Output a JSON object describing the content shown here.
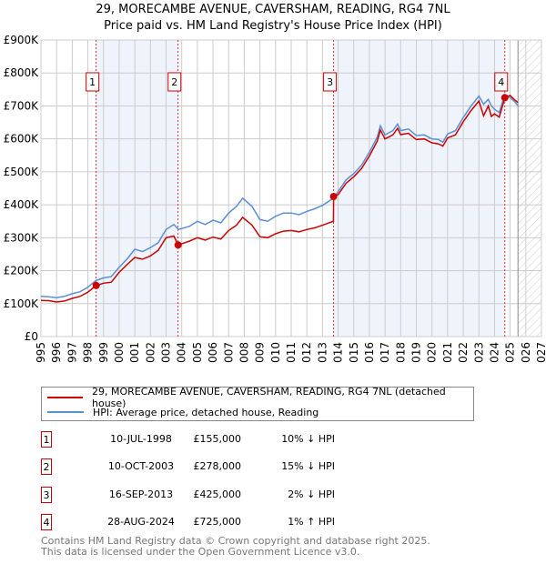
{
  "title": [
    "29, MORECAMBE AVENUE, CAVERSHAM, READING, RG4 7NL",
    "Price paid vs. HM Land Registry's House Price Index (HPI)"
  ],
  "chart_data": {
    "type": "line",
    "title": "29, MORECAMBE AVENUE, CAVERSHAM, READING, RG4 7NL - Price paid vs. HM Land Registry's House Price Index (HPI)",
    "xlim": [
      1995,
      2027
    ],
    "ylim": [
      0,
      900000
    ],
    "xticks": [
      1995,
      1996,
      1997,
      1998,
      1999,
      2000,
      2001,
      2002,
      2003,
      2004,
      2005,
      2006,
      2007,
      2008,
      2009,
      2010,
      2011,
      2012,
      2013,
      2014,
      2015,
      2016,
      2017,
      2018,
      2019,
      2020,
      2021,
      2022,
      2023,
      2024,
      2025,
      2026,
      2027
    ],
    "yticks": [
      {
        "v": 0,
        "label": "£0"
      },
      {
        "v": 100000,
        "label": "£100K"
      },
      {
        "v": 200000,
        "label": "£200K"
      },
      {
        "v": 300000,
        "label": "£300K"
      },
      {
        "v": 400000,
        "label": "£400K"
      },
      {
        "v": 500000,
        "label": "£500K"
      },
      {
        "v": 600000,
        "label": "£600K"
      },
      {
        "v": 700000,
        "label": "£700K"
      },
      {
        "v": 800000,
        "label": "£800K"
      },
      {
        "v": 900000,
        "label": "£900K"
      }
    ],
    "grid": true,
    "colors": {
      "property": "#cc0000",
      "hpi": "#5b8fd4",
      "shade": "#eef3fc"
    },
    "forecast_start": 2025.5,
    "series": [
      {
        "name": "hpi",
        "x": [
          1995,
          1995.5,
          1996,
          1996.5,
          1997,
          1997.5,
          1998,
          1998.5,
          1999,
          1999.5,
          2000,
          2000.5,
          2001,
          2001.5,
          2002,
          2002.5,
          2003,
          2003.5,
          2003.8,
          2004,
          2004.5,
          2005,
          2005.5,
          2006,
          2006.5,
          2007,
          2007.5,
          2007.9,
          2008.5,
          2009,
          2009.5,
          2010,
          2010.5,
          2011,
          2011.5,
          2012,
          2012.5,
          2013,
          2013.7,
          2014,
          2014.5,
          2015,
          2015.5,
          2016,
          2016.5,
          2016.7,
          2017,
          2017.5,
          2017.8,
          2018,
          2018.5,
          2019,
          2019.5,
          2020,
          2020.4,
          2020.7,
          2021,
          2021.5,
          2022,
          2022.5,
          2023,
          2023.3,
          2023.6,
          2023.8,
          2024,
          2024.3,
          2024.65,
          2025,
          2025.3,
          2025.5
        ],
        "y": [
          122000,
          121000,
          118000,
          122000,
          130000,
          136000,
          150000,
          170000,
          178000,
          182000,
          210000,
          235000,
          265000,
          258000,
          270000,
          285000,
          325000,
          340000,
          325000,
          328000,
          335000,
          350000,
          340000,
          353000,
          345000,
          375000,
          395000,
          420000,
          395000,
          355000,
          350000,
          365000,
          375000,
          375000,
          370000,
          380000,
          388000,
          398000,
          420000,
          440000,
          475000,
          495000,
          520000,
          560000,
          605000,
          640000,
          612000,
          625000,
          645000,
          625000,
          630000,
          610000,
          612000,
          600000,
          598000,
          590000,
          615000,
          625000,
          665000,
          700000,
          730000,
          705000,
          720000,
          700000,
          690000,
          680000,
          735000,
          725000,
          712000,
          700000
        ]
      },
      {
        "name": "property",
        "x": [
          1995,
          1995.5,
          1996,
          1996.5,
          1997,
          1997.5,
          1998,
          1998.53,
          1999,
          1999.5,
          2000,
          2000.5,
          2001,
          2001.5,
          2002,
          2002.5,
          2003,
          2003.5,
          2003.77,
          2004,
          2004.5,
          2005,
          2005.5,
          2006,
          2006.5,
          2007,
          2007.5,
          2007.9,
          2008.5,
          2009,
          2009.5,
          2010,
          2010.5,
          2011,
          2011.5,
          2012,
          2012.5,
          2013,
          2013.7,
          2013.71,
          2014,
          2014.5,
          2015,
          2015.5,
          2016,
          2016.5,
          2016.7,
          2017,
          2017.5,
          2017.8,
          2018,
          2018.5,
          2019,
          2019.5,
          2020,
          2020.4,
          2020.7,
          2021,
          2021.5,
          2022,
          2022.5,
          2023,
          2023.3,
          2023.6,
          2023.8,
          2024,
          2024.3,
          2024.66,
          2025,
          2025.3,
          2025.5
        ],
        "y": [
          110000,
          109000,
          105000,
          108000,
          116000,
          122000,
          135000,
          155000,
          162000,
          165000,
          195000,
          218000,
          240000,
          235000,
          245000,
          262000,
          300000,
          305000,
          278000,
          282000,
          290000,
          300000,
          293000,
          302000,
          296000,
          322000,
          338000,
          362000,
          338000,
          303000,
          300000,
          312000,
          320000,
          322000,
          318000,
          325000,
          330000,
          338000,
          350000,
          425000,
          431000,
          465000,
          485000,
          510000,
          548000,
          593000,
          627000,
          600000,
          612000,
          632000,
          613000,
          617000,
          598000,
          600000,
          588000,
          585000,
          578000,
          603000,
          612000,
          652000,
          686000,
          715000,
          670000,
          700000,
          668000,
          676000,
          666000,
          725000,
          732000,
          718000,
          710000
        ]
      }
    ],
    "sales": [
      {
        "n": "1",
        "x": 1998.53,
        "y": 155000
      },
      {
        "n": "2",
        "x": 2003.77,
        "y": 278000
      },
      {
        "n": "3",
        "x": 2013.71,
        "y": 425000
      },
      {
        "n": "4",
        "x": 2024.66,
        "y": 725000
      }
    ]
  },
  "legend": {
    "property": "29, MORECAMBE AVENUE, CAVERSHAM, READING, RG4 7NL (detached house)",
    "hpi": "HPI: Average price, detached house, Reading"
  },
  "transactions": [
    {
      "n": "1",
      "date": "10-JUL-1998",
      "price": "£155,000",
      "pct": "10% ↓ HPI"
    },
    {
      "n": "2",
      "date": "10-OCT-2003",
      "price": "£278,000",
      "pct": "15% ↓ HPI"
    },
    {
      "n": "3",
      "date": "16-SEP-2013",
      "price": "£425,000",
      "pct": "2% ↓ HPI"
    },
    {
      "n": "4",
      "date": "28-AUG-2024",
      "price": "£725,000",
      "pct": "1% ↑ HPI"
    }
  ],
  "footer": [
    "Contains HM Land Registry data © Crown copyright and database right 2025.",
    "This data is licensed under the Open Government Licence v3.0."
  ]
}
